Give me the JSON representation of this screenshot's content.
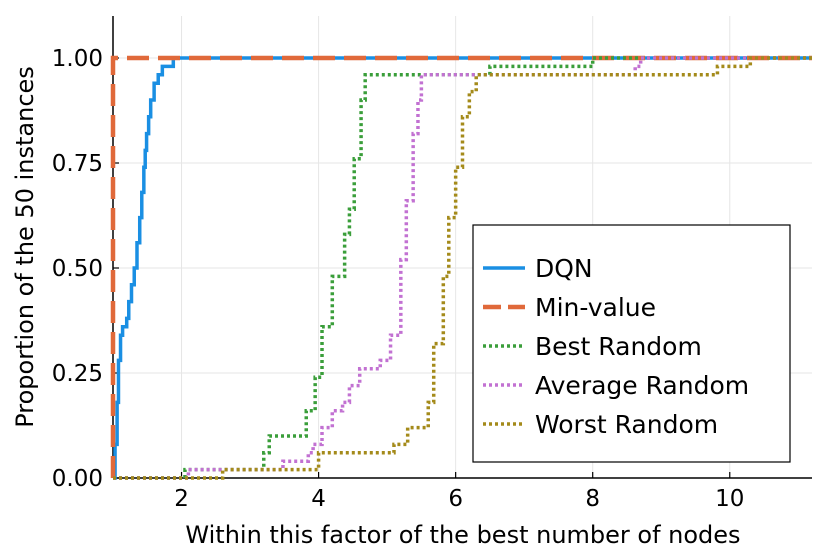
{
  "chart_data": {
    "type": "line",
    "step": true,
    "xlabel": "Within this factor of the best number of nodes",
    "ylabel": "Proportion of the 50 instances",
    "xlim": [
      1,
      11.2
    ],
    "ylim": [
      0,
      1.1
    ],
    "xticks": [
      {
        "value": 2,
        "label": "2"
      },
      {
        "value": 4,
        "label": "4"
      },
      {
        "value": 6,
        "label": "6"
      },
      {
        "value": 8,
        "label": "8"
      },
      {
        "value": 10,
        "label": "10"
      }
    ],
    "yticks": [
      {
        "value": 0,
        "label": "0.00"
      },
      {
        "value": 0.25,
        "label": "0.25"
      },
      {
        "value": 0.5,
        "label": "0.50"
      },
      {
        "value": 0.75,
        "label": "0.75"
      },
      {
        "value": 1,
        "label": "1.00"
      }
    ],
    "grid": true,
    "legend_position": "bottom-right",
    "series": [
      {
        "name": "DQN",
        "color": "#1a8fe3",
        "dash": "solid",
        "points": [
          [
            1.0,
            0.0
          ],
          [
            1.03,
            0.08
          ],
          [
            1.06,
            0.18
          ],
          [
            1.08,
            0.28
          ],
          [
            1.11,
            0.34
          ],
          [
            1.14,
            0.36
          ],
          [
            1.2,
            0.38
          ],
          [
            1.23,
            0.42
          ],
          [
            1.27,
            0.46
          ],
          [
            1.31,
            0.5
          ],
          [
            1.35,
            0.56
          ],
          [
            1.39,
            0.62
          ],
          [
            1.42,
            0.68
          ],
          [
            1.45,
            0.74
          ],
          [
            1.47,
            0.78
          ],
          [
            1.49,
            0.82
          ],
          [
            1.52,
            0.86
          ],
          [
            1.55,
            0.9
          ],
          [
            1.6,
            0.94
          ],
          [
            1.66,
            0.96
          ],
          [
            1.72,
            0.98
          ],
          [
            1.88,
            1.0
          ],
          [
            11.2,
            1.0
          ]
        ]
      },
      {
        "name": "Min-value",
        "color": "#e0693a",
        "dash": "dashed",
        "points": [
          [
            1.0,
            0.0
          ],
          [
            1.0,
            1.0
          ],
          [
            11.2,
            1.0
          ]
        ]
      },
      {
        "name": "Best Random",
        "color": "#3a9e3a",
        "dash": "dotted",
        "points": [
          [
            1.0,
            0.0
          ],
          [
            2.05,
            0.0
          ],
          [
            2.05,
            0.02
          ],
          [
            3.2,
            0.02
          ],
          [
            3.2,
            0.06
          ],
          [
            3.28,
            0.1
          ],
          [
            3.7,
            0.1
          ],
          [
            3.82,
            0.16
          ],
          [
            3.95,
            0.24
          ],
          [
            4.05,
            0.36
          ],
          [
            4.2,
            0.48
          ],
          [
            4.38,
            0.58
          ],
          [
            4.45,
            0.64
          ],
          [
            4.52,
            0.76
          ],
          [
            4.62,
            0.9
          ],
          [
            4.68,
            0.96
          ],
          [
            6.5,
            0.96
          ],
          [
            6.5,
            0.98
          ],
          [
            7.95,
            0.98
          ],
          [
            8.0,
            1.0
          ],
          [
            11.2,
            1.0
          ]
        ]
      },
      {
        "name": "Average Random",
        "color": "#c271d2",
        "dash": "dotted",
        "points": [
          [
            1.0,
            0.0
          ],
          [
            2.1,
            0.0
          ],
          [
            2.1,
            0.02
          ],
          [
            3.4,
            0.02
          ],
          [
            3.48,
            0.04
          ],
          [
            3.85,
            0.06
          ],
          [
            3.92,
            0.08
          ],
          [
            4.05,
            0.12
          ],
          [
            4.2,
            0.16
          ],
          [
            4.35,
            0.18
          ],
          [
            4.45,
            0.22
          ],
          [
            4.6,
            0.26
          ],
          [
            4.9,
            0.28
          ],
          [
            5.05,
            0.34
          ],
          [
            5.2,
            0.52
          ],
          [
            5.28,
            0.66
          ],
          [
            5.38,
            0.82
          ],
          [
            5.45,
            0.9
          ],
          [
            5.5,
            0.96
          ],
          [
            8.55,
            0.96
          ],
          [
            8.62,
            0.98
          ],
          [
            8.7,
            1.0
          ],
          [
            11.2,
            1.0
          ]
        ]
      },
      {
        "name": "Worst Random",
        "color": "#a48a1a",
        "dash": "dotted",
        "points": [
          [
            1.0,
            0.0
          ],
          [
            2.6,
            0.0
          ],
          [
            2.6,
            0.02
          ],
          [
            3.95,
            0.02
          ],
          [
            4.0,
            0.06
          ],
          [
            5.05,
            0.06
          ],
          [
            5.1,
            0.08
          ],
          [
            5.3,
            0.12
          ],
          [
            5.6,
            0.18
          ],
          [
            5.68,
            0.32
          ],
          [
            5.82,
            0.48
          ],
          [
            5.9,
            0.62
          ],
          [
            6.0,
            0.74
          ],
          [
            6.1,
            0.86
          ],
          [
            6.2,
            0.92
          ],
          [
            6.3,
            0.96
          ],
          [
            9.75,
            0.96
          ],
          [
            9.82,
            0.98
          ],
          [
            10.3,
            0.98
          ],
          [
            10.3,
            1.0
          ],
          [
            11.2,
            1.0
          ]
        ]
      }
    ]
  }
}
